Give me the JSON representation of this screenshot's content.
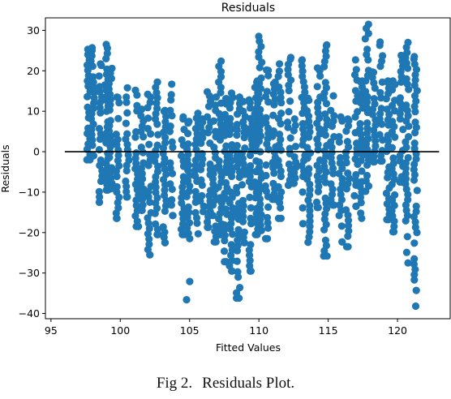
{
  "chart_data": {
    "type": "scatter",
    "title": "Residuals",
    "xlabel": "Fitted Values",
    "ylabel": "Residuals",
    "xlim": [
      94.6,
      123.8
    ],
    "ylim": [
      -41.3,
      33.1
    ],
    "xticks": [
      95,
      100,
      105,
      110,
      115,
      120
    ],
    "yticks": [
      30,
      20,
      10,
      0,
      -10,
      -20,
      -30,
      -40
    ],
    "point_color": "#1f77b4",
    "reference_line": {
      "y": 0,
      "x_range": [
        96,
        123
      ],
      "color": "#000000"
    },
    "columns": [
      {
        "x": 97.7,
        "ymin": -2,
        "ymax": 25.3,
        "out": []
      },
      {
        "x": 98.0,
        "ymin": -1,
        "ymax": 25.7,
        "out": []
      },
      {
        "x": 98.6,
        "ymin": -12.5,
        "ymax": 21.7,
        "out": []
      },
      {
        "x": 99.0,
        "ymin": -9.5,
        "ymax": 26.5,
        "out": []
      },
      {
        "x": 99.3,
        "ymin": -9.2,
        "ymax": 20.6,
        "out": []
      },
      {
        "x": 99.8,
        "ymin": -16.5,
        "ymax": 13.5,
        "out": []
      },
      {
        "x": 100.5,
        "ymin": -11.2,
        "ymax": 15.8,
        "out": []
      },
      {
        "x": 101.2,
        "ymin": -18.5,
        "ymax": 15.2,
        "out": []
      },
      {
        "x": 101.6,
        "ymin": -14.5,
        "ymax": 10.5,
        "out": []
      },
      {
        "x": 102.1,
        "ymin": -25.5,
        "ymax": 14.2,
        "out": []
      },
      {
        "x": 102.6,
        "ymin": -20.5,
        "ymax": 17.2,
        "out": []
      },
      {
        "x": 103.2,
        "ymin": -22.5,
        "ymax": 10.2,
        "out": []
      },
      {
        "x": 103.7,
        "ymin": -15.8,
        "ymax": 16.7,
        "out": []
      },
      {
        "x": 104.5,
        "ymin": -20.5,
        "ymax": 8.6,
        "out": []
      },
      {
        "x": 104.9,
        "ymin": -21.5,
        "ymax": 7.5,
        "out": [
          -32.1,
          -36.6
        ]
      },
      {
        "x": 105.5,
        "ymin": -20.3,
        "ymax": 9.5,
        "out": []
      },
      {
        "x": 105.9,
        "ymin": -14.8,
        "ymax": 8.1,
        "out": []
      },
      {
        "x": 106.4,
        "ymin": -18.7,
        "ymax": 14.8,
        "out": []
      },
      {
        "x": 106.8,
        "ymin": -22.3,
        "ymax": 13.5,
        "out": []
      },
      {
        "x": 107.2,
        "ymin": -20.5,
        "ymax": 22.4,
        "out": []
      },
      {
        "x": 107.6,
        "ymin": -27.2,
        "ymax": 13.1,
        "out": []
      },
      {
        "x": 108.0,
        "ymin": -29.5,
        "ymax": 14.5,
        "out": []
      },
      {
        "x": 108.5,
        "ymin": -36.2,
        "ymax": 13.5,
        "out": []
      },
      {
        "x": 108.9,
        "ymin": -22.5,
        "ymax": 12.4,
        "out": []
      },
      {
        "x": 109.4,
        "ymin": -29.5,
        "ymax": 12.8,
        "out": []
      },
      {
        "x": 109.8,
        "ymin": -20.5,
        "ymax": 17.5,
        "out": []
      },
      {
        "x": 110.1,
        "ymin": -19.5,
        "ymax": 28.5,
        "out": []
      },
      {
        "x": 110.6,
        "ymin": -21.5,
        "ymax": 20.2,
        "out": []
      },
      {
        "x": 111.1,
        "ymin": -11.8,
        "ymax": 17.2,
        "out": []
      },
      {
        "x": 111.5,
        "ymin": -16.5,
        "ymax": 21.7,
        "out": []
      },
      {
        "x": 112.2,
        "ymin": -8.3,
        "ymax": 23.3,
        "out": []
      },
      {
        "x": 112.6,
        "ymin": -7.8,
        "ymax": 8.1,
        "out": []
      },
      {
        "x": 113.2,
        "ymin": -17.8,
        "ymax": 22.7,
        "out": []
      },
      {
        "x": 113.6,
        "ymin": -22.4,
        "ymax": 13.2,
        "out": []
      },
      {
        "x": 114.3,
        "ymin": -13.8,
        "ymax": 20.7,
        "out": []
      },
      {
        "x": 114.8,
        "ymin": -25.8,
        "ymax": 26.4,
        "out": []
      },
      {
        "x": 115.3,
        "ymin": -13.2,
        "ymax": 13.8,
        "out": []
      },
      {
        "x": 115.9,
        "ymin": -22.3,
        "ymax": 8.6,
        "out": []
      },
      {
        "x": 116.4,
        "ymin": -23.5,
        "ymax": 8.1,
        "out": []
      },
      {
        "x": 117.0,
        "ymin": -13.5,
        "ymax": 22.7,
        "out": []
      },
      {
        "x": 117.4,
        "ymin": -16.5,
        "ymax": 17.5,
        "out": []
      },
      {
        "x": 117.8,
        "ymin": -9.8,
        "ymax": 31.5,
        "out": []
      },
      {
        "x": 118.3,
        "ymin": -2.5,
        "ymax": 19.7,
        "out": []
      },
      {
        "x": 118.8,
        "ymin": -2.3,
        "ymax": 27.1,
        "out": []
      },
      {
        "x": 119.3,
        "ymin": -16.8,
        "ymax": 17.5,
        "out": []
      },
      {
        "x": 119.7,
        "ymin": -19.8,
        "ymax": 17.5,
        "out": []
      },
      {
        "x": 120.3,
        "ymin": -7.5,
        "ymax": 23.8,
        "out": []
      },
      {
        "x": 120.7,
        "ymin": -27.5,
        "ymax": 27.0,
        "out": []
      },
      {
        "x": 121.3,
        "ymin": -38.2,
        "ymax": 23.5,
        "out": []
      }
    ]
  },
  "caption": {
    "label": "Fig 2.",
    "text": "Residuals Plot."
  }
}
